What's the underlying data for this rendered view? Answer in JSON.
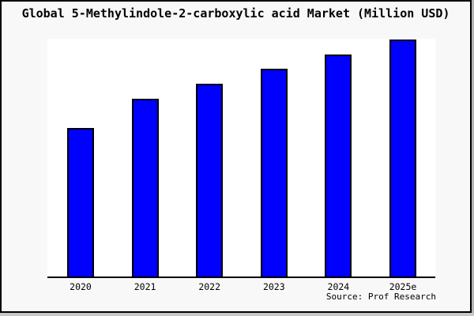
{
  "title": "Global 5-Methylindole-2-carboxylic acid Market (Million USD)",
  "source": "Source: Prof Research",
  "colors": {
    "bar_fill": "#0000ff",
    "bar_edge": "#000000",
    "figure_background": "#f8f8f8",
    "plot_background": "#ffffff",
    "axis_line": "#000000",
    "frame_border": "#000000",
    "text": "#000000"
  },
  "chart_data": {
    "type": "bar",
    "title": "Global 5-Methylindole-2-carboxylic acid Market (Million USD)",
    "categories": [
      "2020",
      "2021",
      "2022",
      "2023",
      "2024",
      "2025e"
    ],
    "values": [
      62.7,
      75.0,
      81.3,
      87.7,
      93.7,
      100.0
    ],
    "values_note": "relative units estimated from bar heights; y-axis has no scale labels in the image",
    "xlabel": "",
    "ylabel": "",
    "ylim": [
      0,
      100.3
    ],
    "grid": false,
    "legend": false,
    "y_axis_visible": false,
    "annotations": [
      "Source: Prof Research"
    ]
  }
}
